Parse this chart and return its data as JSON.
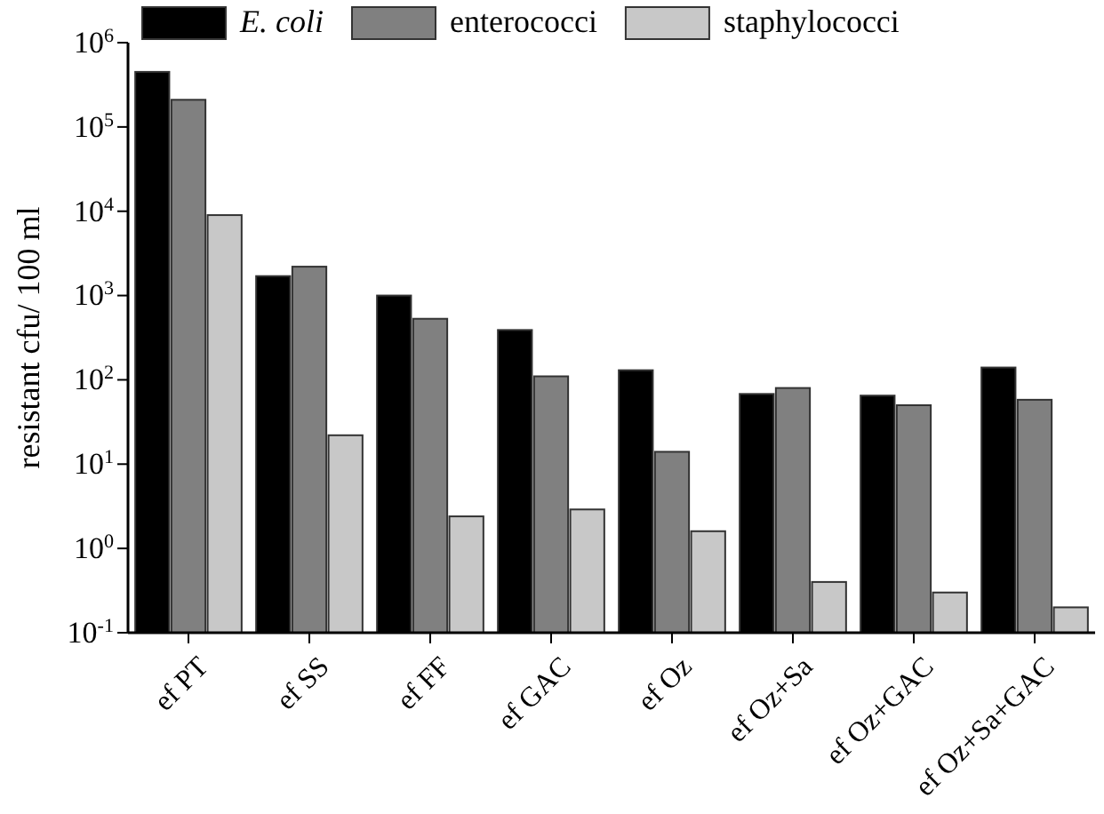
{
  "chart_data": {
    "type": "bar",
    "ylabel": "resistant cfu/ 100 ml",
    "log": true,
    "legend": "top",
    "grid": false,
    "categories": [
      "ef PT",
      "ef SS",
      "ef FF",
      "ef GAC",
      "ef Oz",
      "ef Oz+Sa",
      "ef Oz+GAC",
      "ef Oz+Sa+GAC"
    ],
    "series": [
      {
        "name": "E. coli",
        "color": "#000000",
        "values": [
          450000,
          1700,
          1000,
          390,
          130,
          68,
          65,
          140
        ]
      },
      {
        "name": "enterococci",
        "color": "#808080",
        "values": [
          210000,
          2200,
          530,
          110,
          14,
          80,
          50,
          58
        ]
      },
      {
        "name": "staphylococci",
        "color": "#c8c8c8",
        "values": [
          9000,
          22,
          2.4,
          2.9,
          1.6,
          0.4,
          0.3,
          0.2
        ]
      }
    ],
    "ylim": [
      0.1,
      1000000
    ],
    "yticks": [
      {
        "value": 0.1,
        "label": "10$^{-1}$"
      },
      {
        "value": 1,
        "label": "10$^{0}$"
      },
      {
        "value": 10,
        "label": "10$^{1}$"
      },
      {
        "value": 100,
        "label": "10$^{2}$"
      },
      {
        "value": 1000,
        "label": "10$^{3}$"
      },
      {
        "value": 10000,
        "label": "10$^{4}$"
      },
      {
        "value": 100000,
        "label": "10$^{5}$"
      },
      {
        "value": 1000000,
        "label": "10$^{6}$"
      }
    ]
  }
}
